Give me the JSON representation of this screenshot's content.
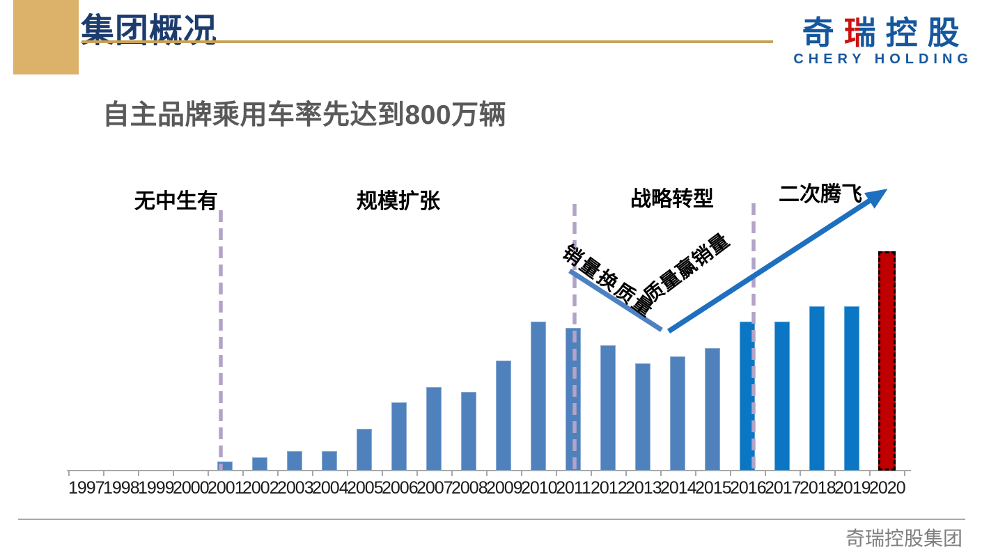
{
  "header": {
    "title": "集团概况",
    "logo": {
      "cn_part1": "奇",
      "cn_red_char": "瑞",
      "cn_part2": "控股",
      "en": "CHERY HOLDING"
    }
  },
  "subtitle": "自主品牌乘用车率先达到800万辆",
  "phases": [
    {
      "label": "无中生有"
    },
    {
      "label": "规模扩张"
    },
    {
      "label": "战略转型"
    },
    {
      "label": "二次腾飞"
    }
  ],
  "annotations": {
    "down_label": "销量换质量",
    "up_label": "质量赢销量"
  },
  "chart_data": {
    "type": "bar",
    "title": "自主品牌乘用车率先达到800万辆",
    "xlabel": "",
    "ylabel": "",
    "grid": false,
    "legend": null,
    "unit": "relative bar height, % of tallest bar (no value axis shown in chart)",
    "ylim": [
      0,
      100
    ],
    "categories": [
      "1997",
      "1998",
      "1999",
      "2000",
      "2001",
      "2002",
      "2003",
      "2004",
      "2005",
      "2006",
      "2007",
      "2008",
      "2009",
      "2010",
      "2011",
      "2012",
      "2013",
      "2014",
      "2015",
      "2016",
      "2017",
      "2018",
      "2019",
      "2020"
    ],
    "values": [
      0,
      0,
      0,
      0,
      4,
      6,
      9,
      9,
      19,
      31,
      38,
      36,
      50,
      68,
      65,
      57,
      49,
      52,
      56,
      68,
      68,
      75,
      75,
      100
    ],
    "bar_colors": [
      "#4f81bd",
      "#4f81bd",
      "#4f81bd",
      "#4f81bd",
      "#4f81bd",
      "#4f81bd",
      "#4f81bd",
      "#4f81bd",
      "#4f81bd",
      "#4f81bd",
      "#4f81bd",
      "#4f81bd",
      "#4f81bd",
      "#4f81bd",
      "#4f81bd",
      "#4f81bd",
      "#4f81bd",
      "#4f81bd",
      "#4f81bd",
      "#0b76c4",
      "#0b76c4",
      "#0b76c4",
      "#0b76c4",
      "#c00000"
    ],
    "highlight_year": "2020",
    "phase_dividers_after": [
      "2000",
      "2011",
      "2016"
    ]
  },
  "footer": {
    "text": "奇瑞控股集团"
  },
  "colors": {
    "accent_gold": "#dcb169",
    "title_underline_gold": "#c9a258",
    "title_navy": "#1d3c6e",
    "logo_blue": "#15579e",
    "logo_red": "#cc1111",
    "subtitle_gray": "#595959",
    "bar_muted_blue": "#4f81bd",
    "bar_vivid_blue": "#0b76c4",
    "bar_target_red": "#c00000",
    "divider_purple": "#b3a3c8",
    "arrow_blue": "#1e70bf",
    "arrow_light_blue": "#4d81c2",
    "axis_gray": "#a8a8a8",
    "footer_gray": "#7f7f7f"
  }
}
